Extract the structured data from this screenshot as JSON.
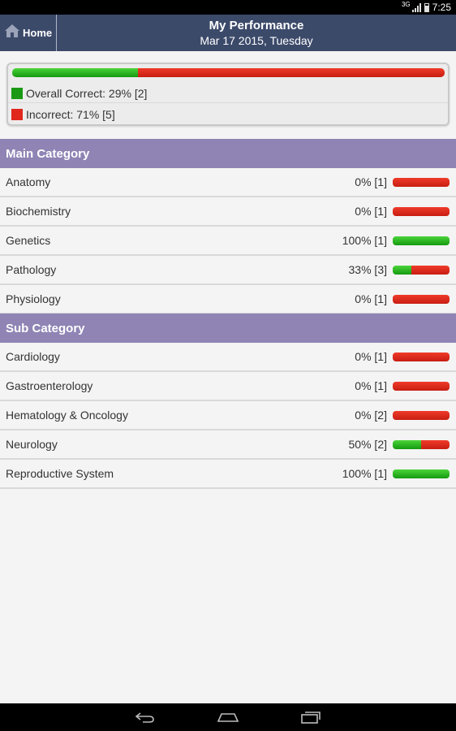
{
  "status_bar": {
    "network": "3G",
    "time": "7:25"
  },
  "header": {
    "home_label": "Home",
    "title": "My Performance",
    "subtitle": "Mar 17 2015, Tuesday"
  },
  "summary": {
    "correct_fraction": 0.29,
    "correct_label": "Overall Correct: 29% [2]",
    "incorrect_label": "Incorrect: 71% [5]",
    "colors": {
      "correct": "#1a9a14",
      "incorrect": "#e0281d"
    }
  },
  "main_category": {
    "title": "Main Category",
    "items": [
      {
        "name": "Anatomy",
        "value": "0% [1]",
        "fraction": 0.0
      },
      {
        "name": "Biochemistry",
        "value": "0% [1]",
        "fraction": 0.0
      },
      {
        "name": "Genetics",
        "value": "100% [1]",
        "fraction": 1.0
      },
      {
        "name": "Pathology",
        "value": "33% [3]",
        "fraction": 0.33
      },
      {
        "name": "Physiology",
        "value": "0% [1]",
        "fraction": 0.0
      }
    ]
  },
  "sub_category": {
    "title": "Sub Category",
    "items": [
      {
        "name": "Cardiology",
        "value": "0% [1]",
        "fraction": 0.0
      },
      {
        "name": "Gastroenterology",
        "value": "0% [1]",
        "fraction": 0.0
      },
      {
        "name": "Hematology & Oncology",
        "value": "0% [2]",
        "fraction": 0.0
      },
      {
        "name": "Neurology",
        "value": "50% [2]",
        "fraction": 0.5
      },
      {
        "name": "Reproductive System",
        "value": "100% [1]",
        "fraction": 1.0
      }
    ]
  },
  "icons": {
    "home": "home-icon",
    "back": "back-icon",
    "nav_home": "nav-home-icon",
    "recents": "recent-apps-icon"
  }
}
